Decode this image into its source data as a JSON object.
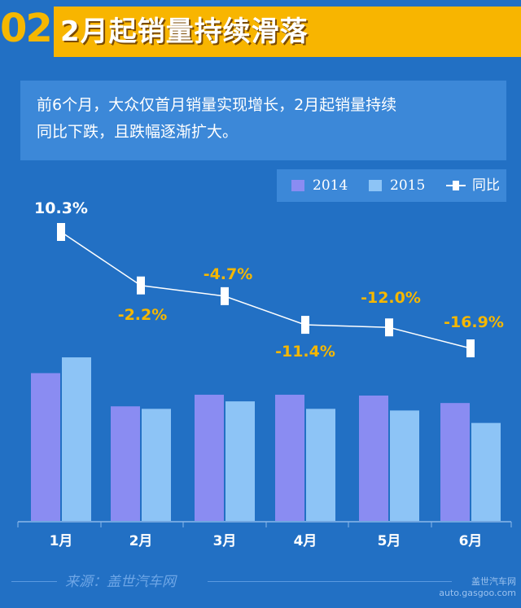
{
  "header": {
    "number": "02",
    "title": "2月起销量持续滑落"
  },
  "summary": {
    "line1": "前6个月，大众仅首月销量实现增长，2月起销量持续",
    "line2": "同比下跌，且跌幅逐渐扩大。"
  },
  "source": {
    "text": "来源：盖世汽车网",
    "watermark_line1": "盖世汽车网",
    "watermark_line2": "auto.gasgoo.com"
  },
  "colors": {
    "background": "#2270c4",
    "bar_2014": "#8a8cf2",
    "bar_2015": "#8dc4f6",
    "line": "#ffffff",
    "negative_label": "#f5b700",
    "positive_label": "#ffffff",
    "header_bar": "#f8b500"
  },
  "chart_data": {
    "type": "bar",
    "categories": [
      "1月",
      "2月",
      "3月",
      "4月",
      "5月",
      "6月"
    ],
    "series": [
      {
        "name": "2014",
        "type": "bar",
        "values": [
          178,
          138,
          152,
          152,
          151,
          142
        ]
      },
      {
        "name": "2015",
        "type": "bar",
        "values": [
          197,
          135,
          144,
          135,
          133,
          118
        ]
      },
      {
        "name": "同比",
        "type": "line",
        "values": [
          10.3,
          -2.2,
          -4.7,
          -11.4,
          -12.0,
          -16.9
        ],
        "labels": [
          "10.3%",
          "-2.2%",
          "-4.7%",
          "-11.4%",
          "-12.0%",
          "-16.9%"
        ]
      }
    ],
    "legend_position": "top-right",
    "grid": false
  }
}
